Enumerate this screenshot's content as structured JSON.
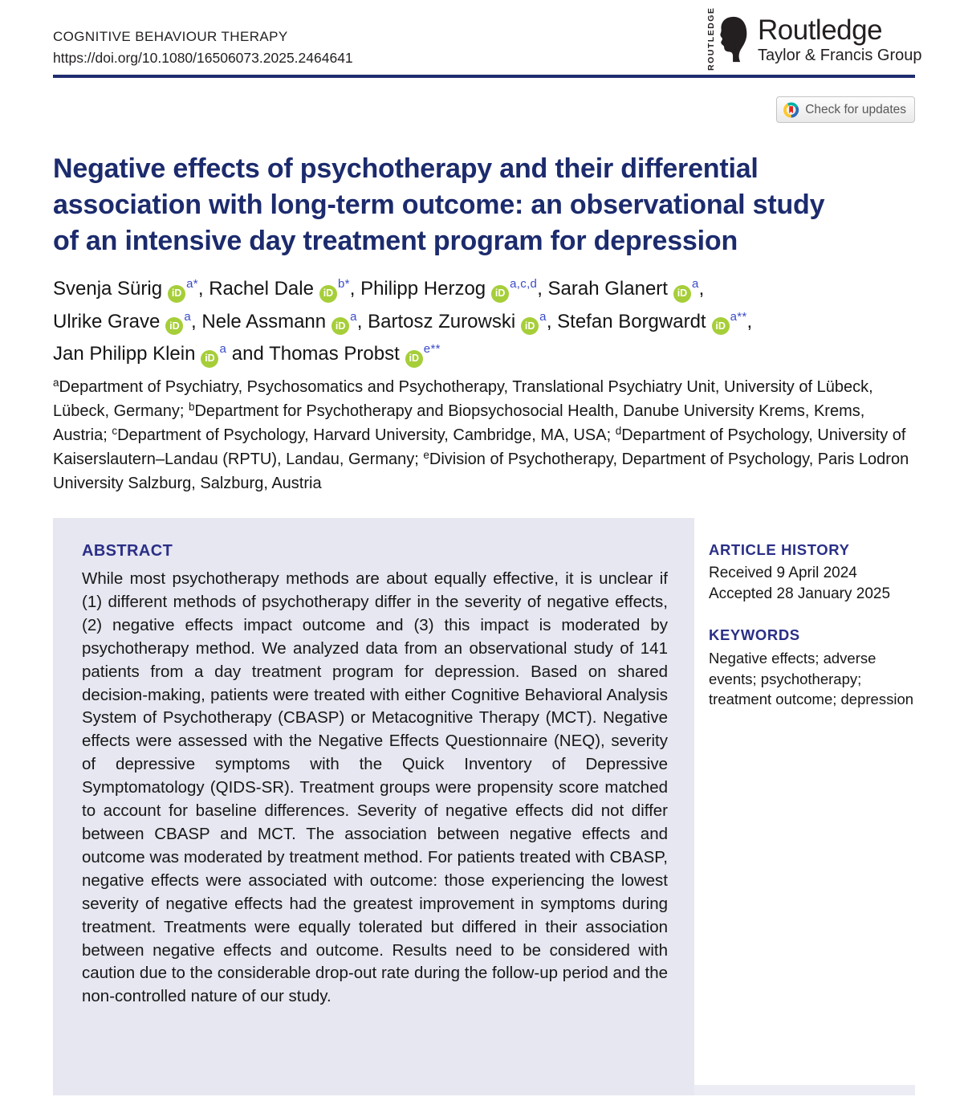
{
  "header": {
    "journal": "COGNITIVE BEHAVIOUR THERAPY",
    "doi": "https://doi.org/10.1080/16506073.2025.2464641",
    "publisher": {
      "vertical_wordmark": "ROUTLEDGE",
      "name": "Routledge",
      "group": "Taylor & Francis Group"
    },
    "check_updates_label": "Check for updates"
  },
  "title": {
    "full": "Negative effects of psychotherapy and their differential association with long-term outcome: an observational study of an intensive day treatment program for depression",
    "lines": [
      "Negative effects of psychotherapy and their differential",
      "association with long-term outcome: an observational study",
      "of an intensive day treatment program for depression"
    ]
  },
  "authors": {
    "orcid_label": "iD",
    "lines": [
      [
        {
          "name": "Svenja Sürig",
          "sup": "a*",
          "post": ", "
        },
        {
          "name": "Rachel Dale",
          "sup": "b*",
          "post": ", "
        },
        {
          "name": "Philipp Herzog",
          "sup": "a,c,d",
          "post": ", "
        },
        {
          "name": "Sarah Glanert",
          "sup": "a",
          "post": ","
        }
      ],
      [
        {
          "name": "Ulrike Grave",
          "sup": "a",
          "post": ", "
        },
        {
          "name": "Nele Assmann",
          "sup": "a",
          "post": ", "
        },
        {
          "name": "Bartosz Zurowski",
          "sup": "a",
          "post": ", "
        },
        {
          "name": "Stefan Borgwardt",
          "sup": "a**",
          "post": ","
        }
      ],
      [
        {
          "name": "Jan Philipp Klein",
          "sup": "a",
          "post": " and "
        },
        {
          "name": "Thomas Probst",
          "sup": "e**",
          "post": ""
        }
      ]
    ]
  },
  "affiliations": [
    {
      "sup": "a",
      "text": "Department of Psychiatry, Psychosomatics and Psychotherapy, Translational Psychiatry Unit, University of Lübeck, Lübeck, Germany; "
    },
    {
      "sup": "b",
      "text": "Department for Psychotherapy and Biopsychosocial Health, Danube University Krems, Krems, Austria; "
    },
    {
      "sup": "c",
      "text": "Department of Psychology, Harvard University, Cambridge, MA, USA; "
    },
    {
      "sup": "d",
      "text": "Department of Psychology, University of Kaiserslautern–Landau (RPTU), Landau, Germany; "
    },
    {
      "sup": "e",
      "text": "Division of Psychotherapy, Department of Psychology, Paris Lodron University Salzburg, Salzburg, Austria"
    }
  ],
  "abstract": {
    "heading": "ABSTRACT",
    "text": "While most psychotherapy methods are about equally effective, it is unclear if (1) different methods of psychotherapy differ in the severity of negative effects, (2) negative effects impact outcome and (3) this impact is moderated by psychotherapy method. We analyzed data from an observational study of 141 patients from a day treatment program for depression. Based on shared decision-making, patients were treated with either Cognitive Behavioral Analysis System of Psychotherapy (CBASP) or Metacognitive Therapy (MCT). Negative effects were assessed with the Negative Effects Questionnaire (NEQ), severity of depressive symptoms with the Quick Inventory of Depressive Symptomatology (QIDS-SR). Treatment groups were propensity score matched to account for baseline differences. Severity of negative effects did not differ between CBASP and MCT. The association between negative effects and outcome was moderated by treatment method. For patients treated with CBASP, negative effects were associated with outcome: those experiencing the lowest severity of negative effects had the greatest improvement in symptoms during treatment. Treatments were equally tolerated but differed in their association between negative effects and outcome. Results need to be considered with caution due to the considerable drop-out rate during the follow-up period and the non-controlled nature of our study."
  },
  "sidebar": {
    "history_heading": "ARTICLE HISTORY",
    "received": "Received 9 April 2024",
    "accepted": "Accepted 28 January 2025",
    "keywords_heading": "KEYWORDS",
    "keywords": "Negative effects; adverse events; psychotherapy; treatment outcome; depression"
  },
  "icons": {
    "orcid": "orcid-id-icon",
    "crossmark": "crossmark-check-for-updates-icon",
    "routledge_head": "routledge-head-icon"
  },
  "colors": {
    "title_navy": "#1c2b6d",
    "heading_blue": "#2a2f86",
    "rule_navy": "#1f2c6e",
    "orcid_green": "#a6ce39",
    "superscript_blue": "#3b4cc8",
    "abstract_bg": "#e7e7f1",
    "strip_bg": "#ececf5",
    "crossmark_red": "#e1251b",
    "crossmark_yellow": "#ffc72c",
    "crossmark_teal": "#00b2a9",
    "crossmark_blue": "#2d6cb5",
    "logo_black": "#231f20"
  }
}
